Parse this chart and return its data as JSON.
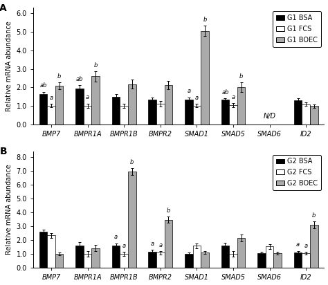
{
  "panel_A": {
    "title": "A",
    "ylabel": "Relative mRNA abundance",
    "ylim": [
      0,
      6.3
    ],
    "yticks": [
      0.0,
      1.0,
      2.0,
      3.0,
      4.0,
      5.0,
      6.0
    ],
    "ytick_labels": [
      "0.0",
      "1.0",
      "2.0",
      "3.0",
      "4.0",
      "5.0",
      "6.0"
    ],
    "genes": [
      "BMP7",
      "BMPR1A",
      "BMPR1B",
      "BMPR2",
      "SMAD1",
      "SMAD5",
      "SMAD6",
      "ID2"
    ],
    "BSA": [
      1.65,
      1.95,
      1.5,
      1.35,
      1.35,
      1.33,
      null,
      1.3
    ],
    "FCS": [
      1.02,
      1.02,
      1.02,
      1.12,
      1.02,
      1.05,
      null,
      1.1
    ],
    "BOEC": [
      2.1,
      2.6,
      2.18,
      2.12,
      5.05,
      2.02,
      null,
      1.0
    ],
    "BSA_err": [
      0.12,
      0.18,
      0.13,
      0.12,
      0.12,
      0.1,
      null,
      0.12
    ],
    "FCS_err": [
      0.1,
      0.12,
      0.12,
      0.15,
      0.1,
      0.1,
      null,
      0.1
    ],
    "BOEC_err": [
      0.18,
      0.28,
      0.25,
      0.22,
      0.28,
      0.25,
      null,
      0.1
    ],
    "BSA_label": [
      "ab",
      "ab",
      "",
      "",
      "a",
      "ab",
      null,
      ""
    ],
    "FCS_label": [
      "a",
      "a",
      "",
      "",
      "a",
      "a",
      null,
      ""
    ],
    "BOEC_label": [
      "b",
      "b",
      "",
      "",
      "b",
      "b",
      null,
      ""
    ],
    "ND_gene_idx": 6,
    "legend_labels": [
      "G1 BSA",
      "G1 FCS",
      "G1 BOEC"
    ]
  },
  "panel_B": {
    "title": "B",
    "ylabel": "Relative mRNA abundance",
    "ylim": [
      0,
      8.4
    ],
    "yticks": [
      0.0,
      1.0,
      2.0,
      3.0,
      4.0,
      5.0,
      6.0,
      7.0,
      8.0
    ],
    "ytick_labels": [
      "0.0",
      "1.0",
      "2.0",
      "3.0",
      "4.0",
      "5.0",
      "6.0",
      "7.0",
      "8.0"
    ],
    "genes": [
      "BMP7",
      "BMPR1A",
      "BMPR1B",
      "BMPR2",
      "SMAD1",
      "SMAD5",
      "SMAD6",
      "ID2"
    ],
    "BSA": [
      2.6,
      1.62,
      1.6,
      1.18,
      1.02,
      1.62,
      1.08,
      1.12
    ],
    "FCS": [
      2.35,
      1.02,
      1.02,
      1.1,
      1.6,
      1.02,
      1.55,
      1.05
    ],
    "BOEC": [
      1.02,
      1.42,
      6.92,
      3.48,
      1.12,
      2.15,
      1.05,
      3.12
    ],
    "BSA_err": [
      0.18,
      0.22,
      0.18,
      0.12,
      0.08,
      0.2,
      0.1,
      0.12
    ],
    "FCS_err": [
      0.18,
      0.2,
      0.15,
      0.12,
      0.18,
      0.18,
      0.18,
      0.1
    ],
    "BOEC_err": [
      0.12,
      0.22,
      0.25,
      0.22,
      0.12,
      0.25,
      0.1,
      0.25
    ],
    "BSA_label": [
      "",
      "",
      "a",
      "a",
      "",
      "",
      "",
      "a"
    ],
    "FCS_label": [
      "",
      "",
      "a",
      "a",
      "",
      "",
      "",
      "a"
    ],
    "BOEC_label": [
      "",
      "",
      "b",
      "b",
      "",
      "",
      "",
      "b"
    ],
    "legend_labels": [
      "G2 BSA",
      "G2 FCS",
      "G2 BOEC"
    ]
  },
  "colors": {
    "BSA": "#000000",
    "FCS": "#ffffff",
    "BOEC": "#aaaaaa"
  },
  "bar_width": 0.22,
  "font_size": 7,
  "label_font_size": 6.0
}
